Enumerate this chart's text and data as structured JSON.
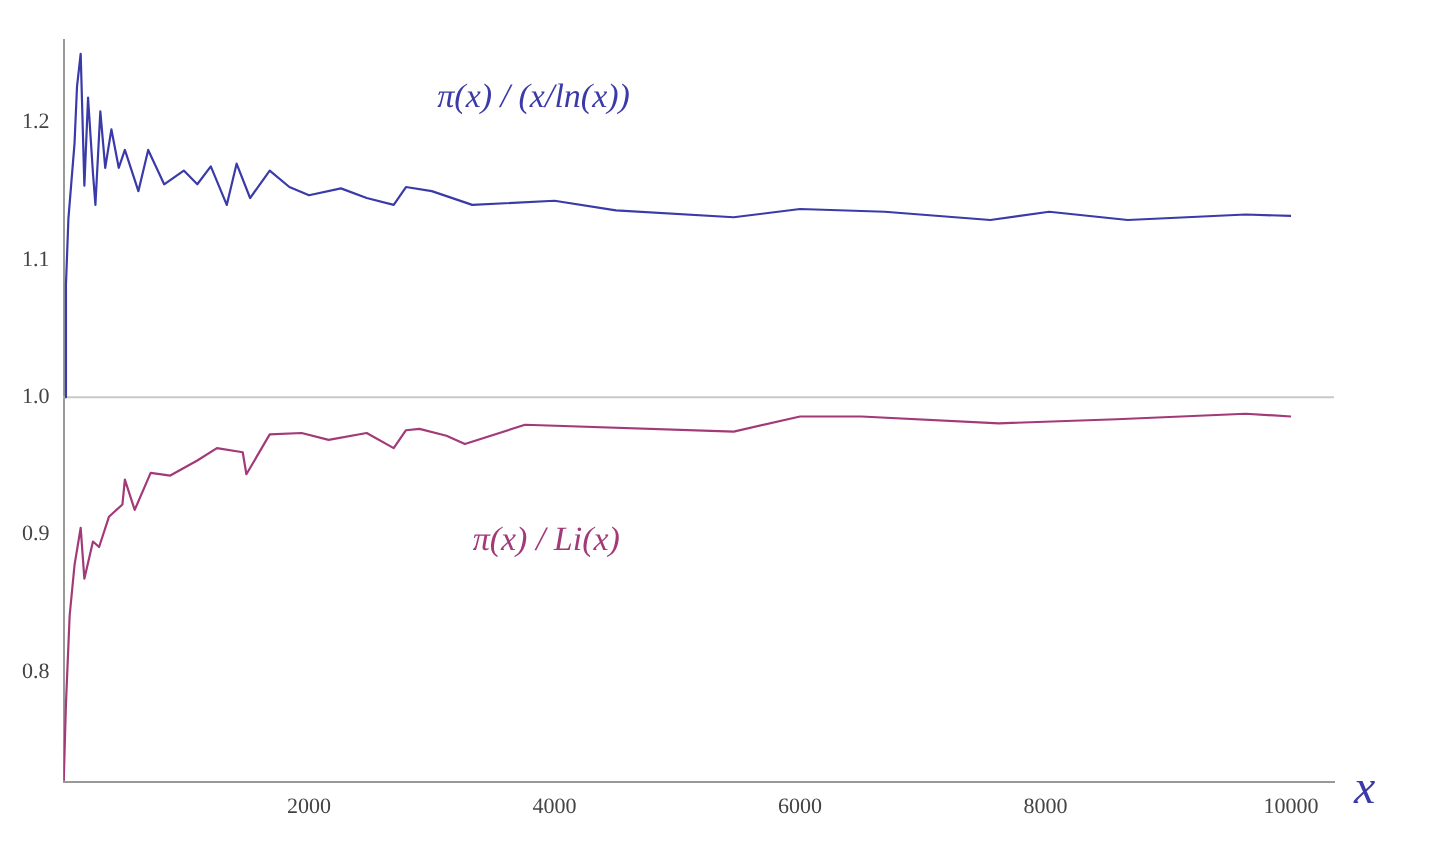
{
  "chart_data": {
    "type": "line",
    "xlabel": "x",
    "xlim": [
      0,
      10350
    ],
    "ylim": [
      0.72,
      1.26
    ],
    "xticks": [
      2000,
      4000,
      6000,
      8000,
      10000
    ],
    "yticks": [
      0.8,
      0.9,
      {
        "value": 1,
        "label": "1.0"
      },
      1.1,
      1.2
    ],
    "grid": false,
    "legend": false,
    "marker": "none",
    "line_style": "solid",
    "ref_lines": [
      {
        "axis": "y",
        "value": 1,
        "color": "#c8c8c8"
      }
    ],
    "series": [
      {
        "name": "π(x) / (x/ln(x))",
        "color": "#3a3aa8",
        "x": [
          10,
          20,
          40,
          90,
          110,
          140,
          170,
          200,
          240,
          260,
          300,
          340,
          390,
          450,
          500,
          610,
          690,
          820,
          980,
          1090,
          1200,
          1330,
          1410,
          1520,
          1680,
          1840,
          2000,
          2260,
          2470,
          2690,
          2790,
          3000,
          3330,
          4000,
          4500,
          5460,
          6000,
          6690,
          7550,
          8030,
          8670,
          9630,
          10000
        ],
        "values": [
          1.0,
          1.082,
          1.13,
          1.185,
          1.226,
          1.25,
          1.154,
          1.218,
          1.163,
          1.14,
          1.208,
          1.167,
          1.195,
          1.167,
          1.18,
          1.15,
          1.18,
          1.155,
          1.165,
          1.155,
          1.168,
          1.14,
          1.17,
          1.145,
          1.165,
          1.153,
          1.147,
          1.152,
          1.145,
          1.14,
          1.153,
          1.15,
          1.14,
          1.143,
          1.136,
          1.131,
          1.137,
          1.135,
          1.129,
          1.135,
          1.129,
          1.133,
          1.132
        ]
      },
      {
        "name": "π(x) / Li(x)",
        "color": "#a33a78",
        "x": [
          2,
          20,
          50,
          90,
          140,
          170,
          240,
          290,
          370,
          480,
          500,
          580,
          710,
          870,
          1090,
          1250,
          1460,
          1490,
          1680,
          1940,
          2160,
          2470,
          2690,
          2790,
          2900,
          3120,
          3270,
          3760,
          5460,
          6000,
          6500,
          7620,
          8580,
          9630,
          10000
        ],
        "values": [
          0.721,
          0.777,
          0.841,
          0.878,
          0.905,
          0.868,
          0.895,
          0.891,
          0.913,
          0.922,
          0.94,
          0.918,
          0.945,
          0.943,
          0.954,
          0.963,
          0.96,
          0.944,
          0.973,
          0.974,
          0.969,
          0.974,
          0.963,
          0.976,
          0.977,
          0.972,
          0.966,
          0.98,
          0.975,
          0.986,
          0.986,
          0.981,
          0.984,
          0.988,
          0.986
        ]
      }
    ]
  }
}
